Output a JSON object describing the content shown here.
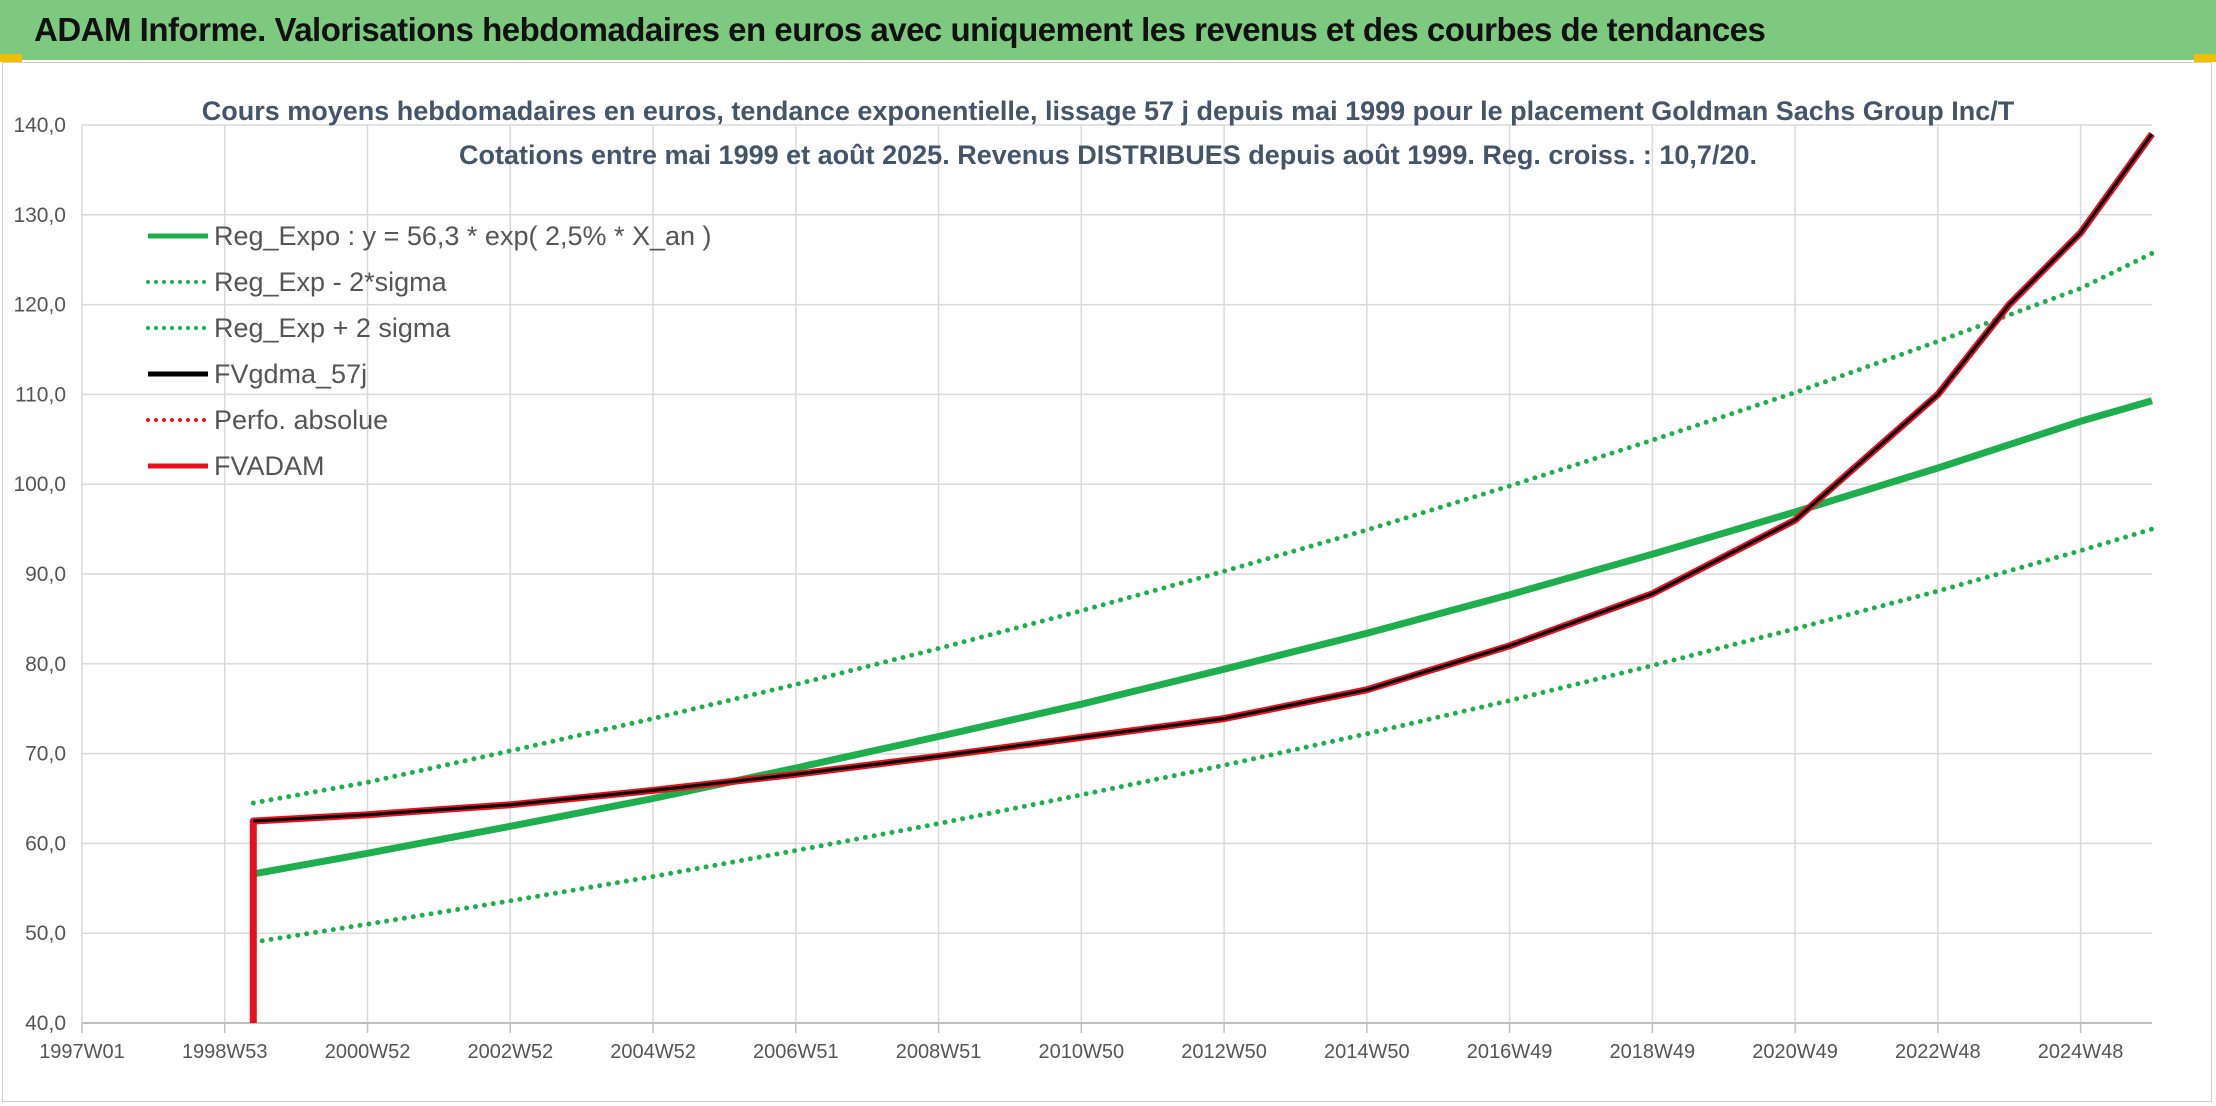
{
  "banner": {
    "title": "ADAM Informe. Valorisations hebdomadaires en euros avec uniquement les revenus et des courbes de tendances"
  },
  "colors": {
    "banner": "#7dc97f",
    "green": "#1fae4e",
    "red": "#e8101c",
    "black": "#000000",
    "grid": "#d9d9d9"
  },
  "chart_data": {
    "type": "line",
    "title": "Cours moyens hebdomadaires en euros, tendance exponentielle, lissage 57 j depuis mai 1999 pour le placement Goldman Sachs Group Inc/T",
    "subtitle": "Cotations entre mai 1999 et août 2025. Revenus DISTRIBUES depuis août 1999. Reg. croiss. : 10,7/20.",
    "ylim": [
      40,
      140
    ],
    "yticks": [
      "140,0",
      "130,0",
      "120,0",
      "110,0",
      "100,0",
      "90,0",
      "80,0",
      "70,0",
      "60,0",
      "50,0",
      "40,0"
    ],
    "xlim": [
      1997.0,
      2026.0
    ],
    "xticks": [
      {
        "label": "1997W01",
        "x": 1997.0
      },
      {
        "label": "1998W53",
        "x": 1999.0
      },
      {
        "label": "2000W52",
        "x": 2001.0
      },
      {
        "label": "2002W52",
        "x": 2003.0
      },
      {
        "label": "2004W52",
        "x": 2005.0
      },
      {
        "label": "2006W51",
        "x": 2007.0
      },
      {
        "label": "2008W51",
        "x": 2009.0
      },
      {
        "label": "2010W50",
        "x": 2011.0
      },
      {
        "label": "2012W50",
        "x": 2013.0
      },
      {
        "label": "2014W50",
        "x": 2015.0
      },
      {
        "label": "2016W49",
        "x": 2017.0
      },
      {
        "label": "2018W49",
        "x": 2019.0
      },
      {
        "label": "2020W49",
        "x": 2021.0
      },
      {
        "label": "2022W48",
        "x": 2023.0
      },
      {
        "label": "2024W48",
        "x": 2025.0
      }
    ],
    "legend_position": "top-left",
    "series": [
      {
        "name": "Reg_Expo : y = 56,3 * exp( 2,5% *  X_an )",
        "color": "#1fae4e",
        "style": "solid",
        "width": 7,
        "x": [
          1999.4,
          2001,
          2003,
          2005,
          2007,
          2009,
          2011,
          2013,
          2015,
          2017,
          2019,
          2021,
          2023,
          2025,
          2026
        ],
        "y": [
          56.6,
          58.9,
          61.9,
          65.0,
          68.4,
          71.9,
          75.5,
          79.4,
          83.4,
          87.7,
          92.2,
          96.9,
          101.8,
          107.0,
          109.3
        ]
      },
      {
        "name": "Reg_Exp - 2*sigma",
        "color": "#1fae4e",
        "style": "dotted",
        "width": 5,
        "x": [
          1999.4,
          2001,
          2003,
          2005,
          2007,
          2009,
          2011,
          2013,
          2015,
          2017,
          2019,
          2021,
          2023,
          2025,
          2026
        ],
        "y": [
          49.0,
          51.0,
          53.6,
          56.3,
          59.2,
          62.2,
          65.4,
          68.7,
          72.2,
          75.9,
          79.8,
          83.9,
          88.1,
          92.6,
          95.0
        ]
      },
      {
        "name": "Reg_Exp + 2 sigma",
        "color": "#1fae4e",
        "style": "dotted",
        "width": 5,
        "x": [
          1999.4,
          2001,
          2003,
          2005,
          2007,
          2009,
          2011,
          2013,
          2015,
          2017,
          2019,
          2021,
          2023,
          2025,
          2026
        ],
        "y": [
          64.5,
          66.8,
          70.3,
          73.9,
          77.7,
          81.7,
          85.9,
          90.3,
          94.9,
          99.8,
          104.9,
          110.2,
          115.9,
          121.8,
          125.7
        ]
      },
      {
        "name": "FVgdma_57j",
        "color": "#000000",
        "style": "solid",
        "width": 3,
        "x": [
          1999.4,
          2001,
          2003,
          2005,
          2007,
          2009,
          2011,
          2013,
          2015,
          2017,
          2019,
          2021,
          2023,
          2024,
          2025,
          2026
        ],
        "y": [
          62.5,
          63.2,
          64.3,
          65.9,
          67.7,
          69.7,
          71.8,
          73.9,
          77.1,
          82.0,
          87.8,
          96.0,
          110.0,
          120.0,
          128.0,
          139.0
        ]
      },
      {
        "name": "Perfo. absolue",
        "color": "#e8101c",
        "style": "dotted",
        "width": 4,
        "x": [],
        "y": []
      },
      {
        "name": "FVADAM",
        "color": "#e8101c",
        "style": "solid",
        "width": 7,
        "x": [
          1999.4,
          1999.4,
          2001,
          2003,
          2005,
          2007,
          2009,
          2011,
          2013,
          2015,
          2017,
          2019,
          2021,
          2023,
          2024,
          2025,
          2026
        ],
        "y": [
          40.0,
          62.5,
          63.2,
          64.3,
          65.9,
          67.7,
          69.7,
          71.8,
          73.9,
          77.1,
          82.0,
          87.8,
          96.0,
          110.0,
          120.0,
          128.0,
          139.0
        ]
      }
    ]
  }
}
